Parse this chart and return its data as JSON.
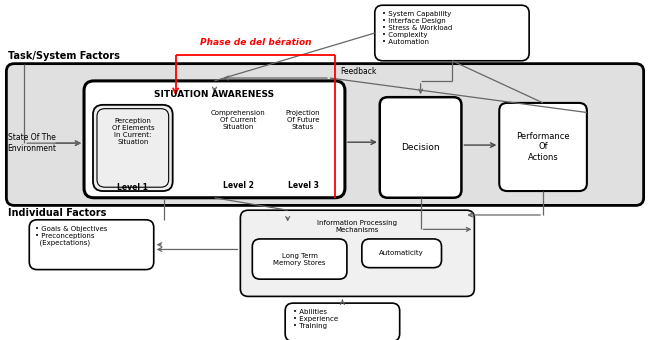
{
  "bg_color": "#ffffff",
  "task_label": "Task/System Factors",
  "individual_label": "Individual Factors",
  "sa_title": "SITUATION AWARENESS",
  "feedback_label": "Feedback",
  "phase_label": "Phase de del bération",
  "top_box_text": "• System Capability\n• Interface Design\n• Stress & Workload\n• Complexity\n• Automation",
  "level1_title": "Perception\nOf Elements\nIn Current:\nSituation",
  "level1_label": "Level 1",
  "level2_title": "Comprehension\nOf Current\nSituation",
  "level2_label": "Level 2",
  "level3_title": "Projection\nOf Future\nStatus",
  "level3_label": "Level 3",
  "decision_label": "Decision",
  "performance_label": "Performance\nOf\nActions",
  "state_label": "State Of The\nEnvironment",
  "goals_text": "• Goals & Objectives\n• Preconceptions\n  (Expectations)",
  "info_proc_text": "Information Processing\nMechanisms",
  "long_term_text": "Long Term\nMemory Stores",
  "automaticity_text": "Automaticity",
  "abilities_text": "• Abilities\n• Experience\n• Training",
  "gray_arrow": "#666666",
  "dark_arrow": "#444444"
}
